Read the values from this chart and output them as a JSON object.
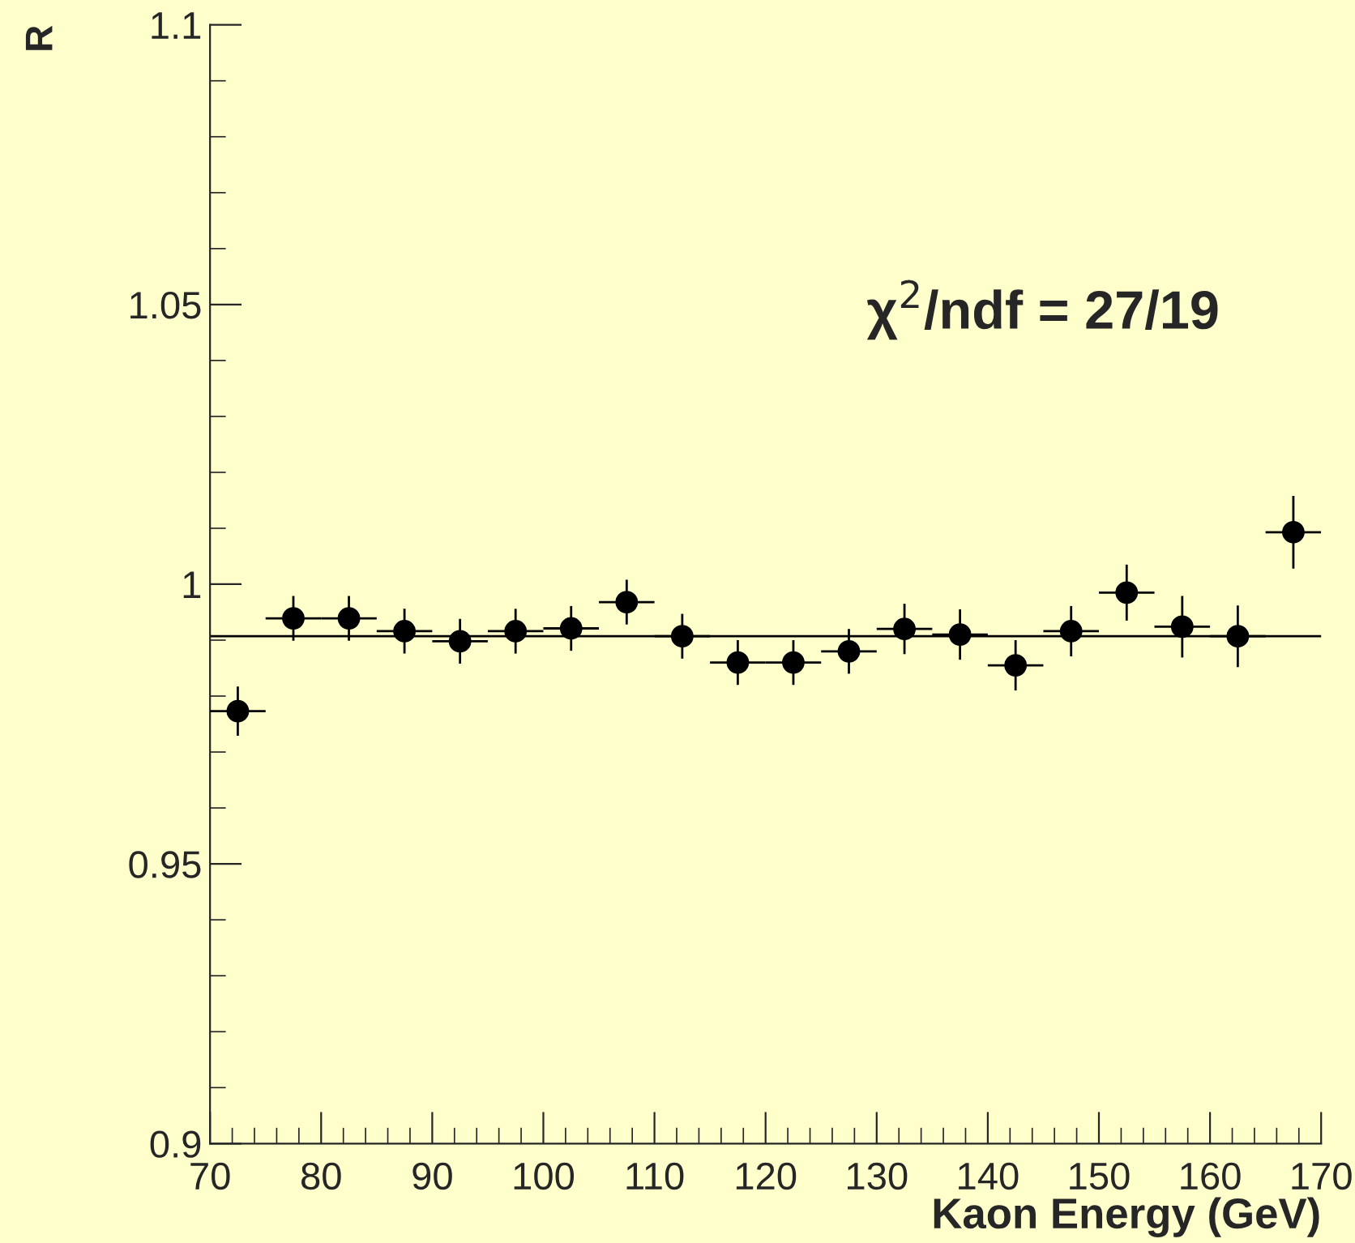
{
  "chart_data": {
    "type": "scatter",
    "xlabel": "Kaon Energy (GeV)",
    "ylabel": "R",
    "x": [
      72.5,
      77.5,
      82.5,
      87.5,
      92.5,
      97.5,
      102.5,
      107.5,
      112.5,
      117.5,
      122.5,
      127.5,
      132.5,
      137.5,
      142.5,
      147.5,
      152.5,
      157.5,
      162.5,
      167.5
    ],
    "series": [
      {
        "color": "#000000",
        "values": [
          0.9773,
          0.9939,
          0.9939,
          0.9916,
          0.9898,
          0.9916,
          0.9921,
          0.9968,
          0.9907,
          0.986,
          0.986,
          0.988,
          0.992,
          0.991,
          0.9855,
          0.9916,
          0.9985,
          0.9924,
          0.9907,
          1.0093
        ],
        "errors": [
          0.0044,
          0.004,
          0.004,
          0.004,
          0.004,
          0.004,
          0.004,
          0.004,
          0.004,
          0.004,
          0.004,
          0.004,
          0.0045,
          0.0045,
          0.0045,
          0.0045,
          0.005,
          0.0055,
          0.0055,
          0.0065
        ],
        "xerrors": [
          2.5,
          2.5,
          2.5,
          2.5,
          2.5,
          2.5,
          2.5,
          2.5,
          2.5,
          2.5,
          2.5,
          2.5,
          2.5,
          2.5,
          2.5,
          2.5,
          2.5,
          2.5,
          2.5,
          2.5
        ]
      }
    ],
    "marker": "circle",
    "ref_lines": [
      {
        "axis": "y",
        "value": 0.9907,
        "color": "#000000"
      }
    ],
    "annotations": [
      "χ$^{2}$/ndf = 27/19"
    ],
    "xlim": [
      70,
      170
    ],
    "xticks": [
      70,
      80,
      90,
      100,
      110,
      120,
      130,
      140,
      150,
      160,
      170
    ],
    "ylim": [
      0.9,
      1.1
    ],
    "yticks": [
      0.9,
      0.95,
      1,
      1.05,
      1.1
    ],
    "grid": false,
    "legend": false
  }
}
